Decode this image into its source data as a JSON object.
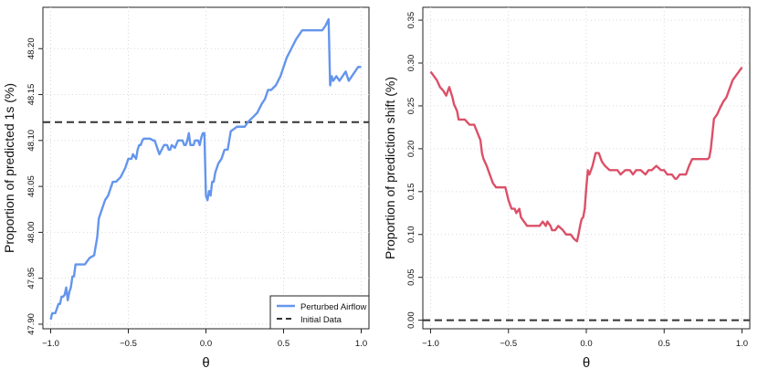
{
  "chart_data": [
    {
      "type": "line",
      "xlabel": "θ",
      "ylabel": "Proportion of predicted 1s (%)",
      "xlim": [
        -1.05,
        1.05
      ],
      "ylim": [
        47.895,
        48.245
      ],
      "x_ticks": [
        -1.0,
        -0.5,
        0.0,
        0.5,
        1.0
      ],
      "x_tick_labels": [
        "−1.0",
        "−0.5",
        "0.0",
        "0.5",
        "1.0"
      ],
      "y_ticks": [
        47.9,
        47.95,
        48.0,
        48.05,
        48.1,
        48.15,
        48.2
      ],
      "y_tick_labels": [
        "47.90",
        "47.95",
        "48.00",
        "48.05",
        "48.10",
        "48.15",
        "48.20"
      ],
      "grid": true,
      "legend": {
        "position": "bottom-right",
        "entries": [
          {
            "label": "Perturbed Airflow",
            "style": "solid",
            "color": "#6495ED"
          },
          {
            "label": "Initial Data",
            "style": "dashed",
            "color": "#333333"
          }
        ]
      },
      "series": [
        {
          "name": "Perturbed Airflow",
          "color": "#6495ED",
          "x": [
            -1.0,
            -0.99,
            -0.97,
            -0.95,
            -0.94,
            -0.93,
            -0.92,
            -0.91,
            -0.9,
            -0.89,
            -0.88,
            -0.87,
            -0.86,
            -0.85,
            -0.84,
            -0.82,
            -0.78,
            -0.75,
            -0.72,
            -0.7,
            -0.69,
            -0.67,
            -0.65,
            -0.63,
            -0.6,
            -0.58,
            -0.55,
            -0.52,
            -0.5,
            -0.48,
            -0.47,
            -0.45,
            -0.44,
            -0.43,
            -0.42,
            -0.41,
            -0.4,
            -0.38,
            -0.36,
            -0.34,
            -0.33,
            -0.3,
            -0.27,
            -0.25,
            -0.24,
            -0.23,
            -0.22,
            -0.2,
            -0.18,
            -0.15,
            -0.14,
            -0.13,
            -0.12,
            -0.11,
            -0.1,
            -0.08,
            -0.07,
            -0.06,
            -0.05,
            -0.04,
            -0.03,
            -0.02,
            -0.01,
            0.0,
            0.01,
            0.02,
            0.03,
            0.04,
            0.05,
            0.06,
            0.08,
            0.1,
            0.12,
            0.14,
            0.16,
            0.2,
            0.22,
            0.25,
            0.27,
            0.3,
            0.33,
            0.36,
            0.38,
            0.4,
            0.42,
            0.45,
            0.48,
            0.5,
            0.52,
            0.55,
            0.58,
            0.6,
            0.62,
            0.65,
            0.68,
            0.7,
            0.75,
            0.77,
            0.79,
            0.8,
            0.81,
            0.82,
            0.84,
            0.86,
            0.88,
            0.9,
            0.92,
            0.94,
            0.96,
            0.98,
            1.0
          ],
          "y": [
            47.905,
            47.912,
            47.912,
            47.922,
            47.922,
            47.93,
            47.93,
            47.932,
            47.94,
            47.926,
            47.935,
            47.94,
            47.952,
            47.952,
            47.965,
            47.965,
            47.965,
            47.972,
            47.975,
            47.995,
            48.015,
            48.025,
            48.035,
            48.04,
            48.055,
            48.055,
            48.06,
            48.07,
            48.08,
            48.08,
            48.085,
            48.08,
            48.09,
            48.095,
            48.095,
            48.1,
            48.102,
            48.102,
            48.102,
            48.1,
            48.1,
            48.085,
            48.095,
            48.095,
            48.09,
            48.09,
            48.095,
            48.092,
            48.1,
            48.1,
            48.095,
            48.095,
            48.1,
            48.108,
            48.095,
            48.095,
            48.1,
            48.1,
            48.1,
            48.095,
            48.103,
            48.108,
            48.108,
            48.04,
            48.035,
            48.045,
            48.04,
            48.055,
            48.055,
            48.065,
            48.075,
            48.08,
            48.09,
            48.09,
            48.11,
            48.115,
            48.115,
            48.115,
            48.12,
            48.125,
            48.13,
            48.14,
            48.145,
            48.155,
            48.155,
            48.16,
            48.17,
            48.18,
            48.19,
            48.2,
            48.21,
            48.215,
            48.22,
            48.22,
            48.22,
            48.22,
            48.22,
            48.225,
            48.232,
            48.16,
            48.17,
            48.165,
            48.17,
            48.165,
            48.17,
            48.175,
            48.165,
            48.17,
            48.175,
            48.18,
            48.18
          ]
        },
        {
          "name": "Initial Data",
          "color": "#333333",
          "style": "dashed",
          "x": [
            -1.05,
            1.05
          ],
          "y": [
            48.12,
            48.12
          ]
        }
      ]
    },
    {
      "type": "line",
      "xlabel": "θ",
      "ylabel": "Proportion of prediction shift (%)",
      "xlim": [
        -1.05,
        1.05
      ],
      "ylim": [
        -0.01,
        0.365
      ],
      "x_ticks": [
        -1.0,
        -0.5,
        0.0,
        0.5,
        1.0
      ],
      "x_tick_labels": [
        "−1.0",
        "−0.5",
        "0.0",
        "0.5",
        "1.0"
      ],
      "y_ticks": [
        0.0,
        0.05,
        0.1,
        0.15,
        0.2,
        0.25,
        0.3,
        0.35
      ],
      "y_tick_labels": [
        "0.00",
        "0.05",
        "0.10",
        "0.15",
        "0.20",
        "0.25",
        "0.30",
        "0.35"
      ],
      "grid": true,
      "series": [
        {
          "color": "#DC5068",
          "x": [
            -1.0,
            -0.98,
            -0.96,
            -0.94,
            -0.92,
            -0.9,
            -0.88,
            -0.86,
            -0.85,
            -0.83,
            -0.82,
            -0.8,
            -0.78,
            -0.75,
            -0.72,
            -0.68,
            -0.67,
            -0.66,
            -0.64,
            -0.62,
            -0.6,
            -0.58,
            -0.56,
            -0.52,
            -0.5,
            -0.48,
            -0.46,
            -0.45,
            -0.43,
            -0.42,
            -0.4,
            -0.38,
            -0.35,
            -0.32,
            -0.3,
            -0.28,
            -0.26,
            -0.25,
            -0.23,
            -0.22,
            -0.2,
            -0.18,
            -0.15,
            -0.13,
            -0.12,
            -0.1,
            -0.08,
            -0.06,
            -0.05,
            -0.04,
            -0.03,
            -0.02,
            -0.01,
            0.0,
            0.01,
            0.02,
            0.04,
            0.06,
            0.08,
            0.1,
            0.12,
            0.15,
            0.18,
            0.2,
            0.22,
            0.25,
            0.28,
            0.3,
            0.32,
            0.35,
            0.38,
            0.4,
            0.42,
            0.45,
            0.48,
            0.5,
            0.52,
            0.55,
            0.57,
            0.58,
            0.6,
            0.62,
            0.64,
            0.66,
            0.68,
            0.7,
            0.75,
            0.78,
            0.79,
            0.8,
            0.82,
            0.84,
            0.86,
            0.88,
            0.9,
            0.92,
            0.94,
            0.96,
            0.98,
            1.0
          ],
          "y": [
            0.29,
            0.285,
            0.28,
            0.272,
            0.268,
            0.262,
            0.272,
            0.26,
            0.252,
            0.244,
            0.234,
            0.234,
            0.234,
            0.228,
            0.228,
            0.21,
            0.195,
            0.188,
            0.18,
            0.17,
            0.16,
            0.155,
            0.155,
            0.155,
            0.14,
            0.13,
            0.13,
            0.125,
            0.13,
            0.12,
            0.115,
            0.11,
            0.11,
            0.11,
            0.11,
            0.115,
            0.11,
            0.115,
            0.11,
            0.105,
            0.105,
            0.11,
            0.105,
            0.1,
            0.1,
            0.1,
            0.095,
            0.092,
            0.1,
            0.11,
            0.118,
            0.12,
            0.13,
            0.155,
            0.175,
            0.17,
            0.18,
            0.195,
            0.195,
            0.185,
            0.18,
            0.175,
            0.175,
            0.175,
            0.17,
            0.175,
            0.175,
            0.17,
            0.175,
            0.175,
            0.17,
            0.175,
            0.175,
            0.18,
            0.175,
            0.175,
            0.17,
            0.17,
            0.165,
            0.165,
            0.17,
            0.17,
            0.17,
            0.18,
            0.188,
            0.188,
            0.188,
            0.188,
            0.19,
            0.2,
            0.235,
            0.24,
            0.248,
            0.255,
            0.26,
            0.27,
            0.28,
            0.285,
            0.29,
            0.295
          ]
        },
        {
          "color": "#333333",
          "style": "dashed",
          "x": [
            -1.05,
            1.05
          ],
          "y": [
            0.0,
            0.0
          ]
        }
      ]
    }
  ]
}
